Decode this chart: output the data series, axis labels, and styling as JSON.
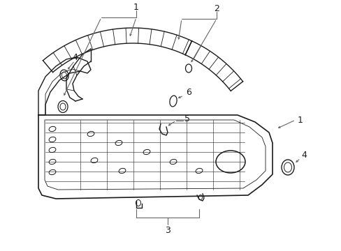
{
  "background_color": "#ffffff",
  "line_color": "#1a1a1a",
  "leader_color": "#666666",
  "fig_width": 4.89,
  "fig_height": 3.6,
  "dpi": 100
}
